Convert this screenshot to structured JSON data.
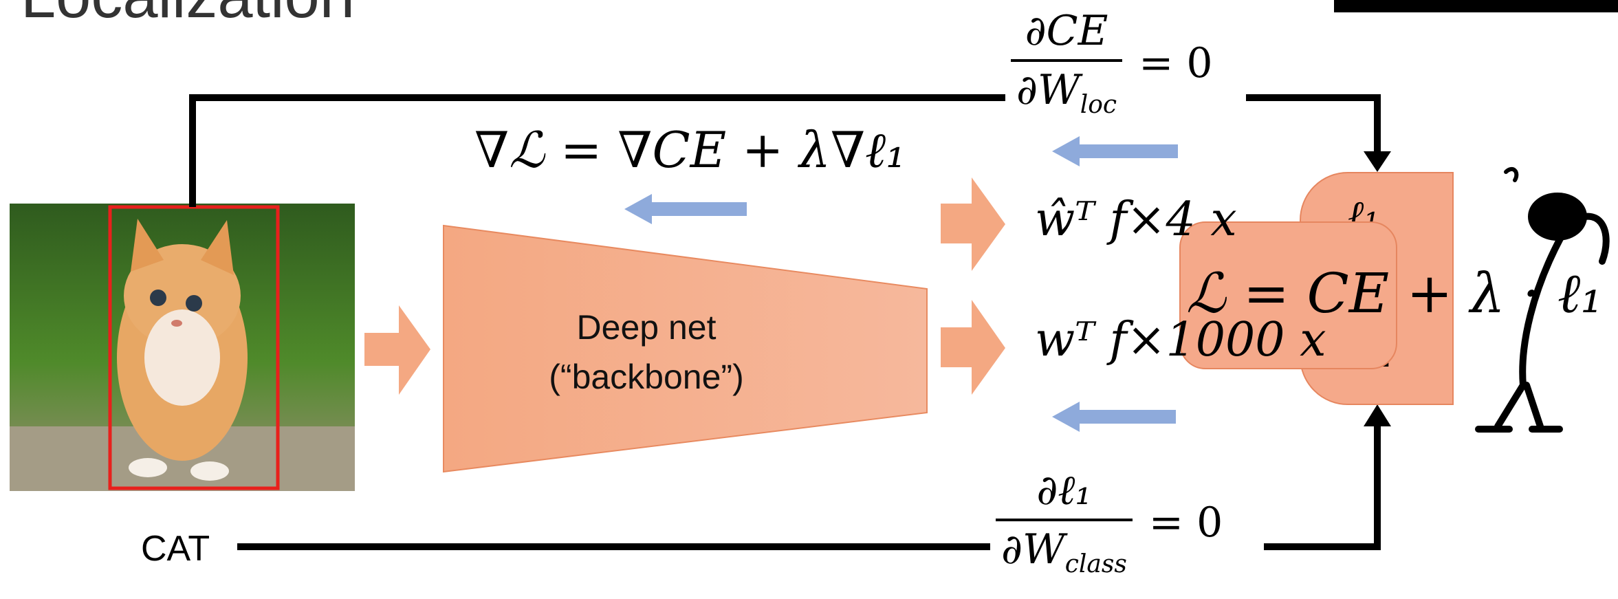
{
  "title": "Localization",
  "image": {
    "subject": "cat-photo",
    "bbox_color": "#e8201c"
  },
  "backbone": {
    "line1": "Deep net",
    "line2": "(“backbone”)",
    "fill": "#f4a882"
  },
  "labels": {
    "cat": "CAT"
  },
  "equations": {
    "loss_gradient": "∇ℒ = ∇CE + λ∇ℓ₁",
    "head_box": "ŵᵀ f×4 x",
    "head_class": "wᵀ f×1000 x",
    "total_loss": "ℒ = CE + λ · ℓ₁",
    "grad_top": {
      "num": "∂CE",
      "den": "∂W",
      "den_sub": "loc",
      "rhs": "= 0"
    },
    "grad_bottom": {
      "num": "∂ℓ₁",
      "den": "∂W",
      "den_sub": "class",
      "rhs": "= 0"
    },
    "box_loss": "ℓ₁",
    "class_loss": "CE"
  },
  "colors": {
    "arrow_orange": "#f4a882",
    "arrow_blue": "#8eaadb",
    "line": "#000000",
    "loss_fill": "#f5a98a"
  }
}
